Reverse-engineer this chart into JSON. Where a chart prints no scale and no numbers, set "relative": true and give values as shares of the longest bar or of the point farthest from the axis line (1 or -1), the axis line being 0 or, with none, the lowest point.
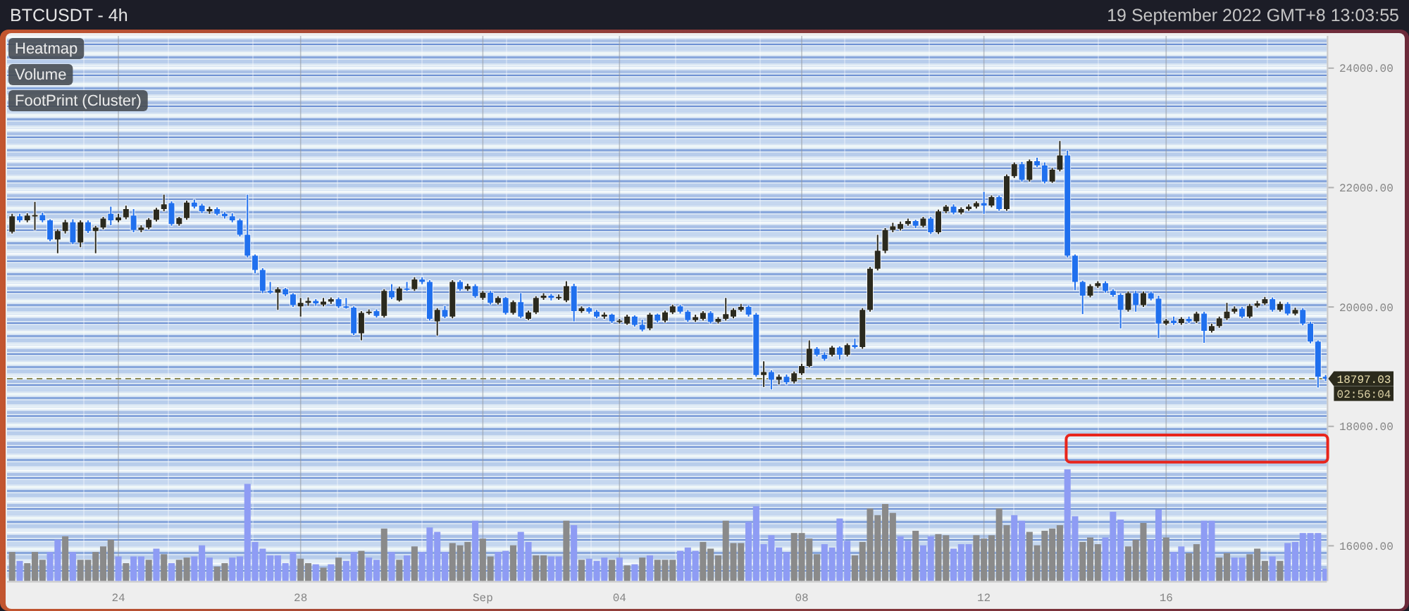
{
  "chart_data": [
    {
      "type": "candlestick",
      "title": "BTCUSDT - 4h",
      "subtitle": "19 September 2022 GMT+8 13:03:55",
      "x": [
        "2022-08-21T16:00",
        "2022-08-21T20:00",
        "2022-08-22T00:00",
        "2022-08-22T04:00",
        "2022-08-22T08:00",
        "2022-08-22T12:00",
        "2022-08-22T16:00",
        "2022-08-22T20:00",
        "2022-08-23T00:00",
        "2022-08-23T04:00",
        "2022-08-23T08:00",
        "2022-08-23T12:00",
        "2022-08-23T16:00",
        "2022-08-23T20:00",
        "2022-08-24T00:00",
        "2022-08-24T04:00",
        "2022-08-24T08:00",
        "2022-08-24T12:00",
        "2022-08-24T16:00",
        "2022-08-24T20:00",
        "2022-08-25T00:00",
        "2022-08-25T04:00",
        "2022-08-25T08:00",
        "2022-08-25T12:00",
        "2022-08-25T16:00",
        "2022-08-25T20:00",
        "2022-08-26T00:00",
        "2022-08-26T04:00",
        "2022-08-26T08:00",
        "2022-08-26T12:00",
        "2022-08-26T16:00",
        "2022-08-26T20:00",
        "2022-08-27T00:00",
        "2022-08-27T04:00",
        "2022-08-27T08:00",
        "2022-08-27T12:00",
        "2022-08-27T16:00",
        "2022-08-27T20:00",
        "2022-08-28T00:00",
        "2022-08-28T04:00",
        "2022-08-28T08:00",
        "2022-08-28T12:00",
        "2022-08-28T16:00",
        "2022-08-28T20:00",
        "2022-08-29T00:00",
        "2022-08-29T04:00",
        "2022-08-29T08:00",
        "2022-08-29T12:00",
        "2022-08-29T16:00",
        "2022-08-29T20:00",
        "2022-08-30T00:00",
        "2022-08-30T04:00",
        "2022-08-30T08:00",
        "2022-08-30T12:00",
        "2022-08-30T16:00",
        "2022-08-30T20:00",
        "2022-08-31T00:00",
        "2022-08-31T04:00",
        "2022-08-31T08:00",
        "2022-08-31T12:00",
        "2022-08-31T16:00",
        "2022-08-31T20:00",
        "2022-09-01T00:00",
        "2022-09-01T04:00",
        "2022-09-01T08:00",
        "2022-09-01T12:00",
        "2022-09-01T16:00",
        "2022-09-01T20:00",
        "2022-09-02T00:00",
        "2022-09-02T04:00",
        "2022-09-02T08:00",
        "2022-09-02T12:00",
        "2022-09-02T16:00",
        "2022-09-02T20:00",
        "2022-09-03T00:00",
        "2022-09-03T04:00",
        "2022-09-03T08:00",
        "2022-09-03T12:00",
        "2022-09-03T16:00",
        "2022-09-03T20:00",
        "2022-09-04T00:00",
        "2022-09-04T04:00",
        "2022-09-04T08:00",
        "2022-09-04T12:00",
        "2022-09-04T16:00",
        "2022-09-04T20:00",
        "2022-09-05T00:00",
        "2022-09-05T04:00",
        "2022-09-05T08:00",
        "2022-09-05T12:00",
        "2022-09-05T16:00",
        "2022-09-05T20:00",
        "2022-09-06T00:00",
        "2022-09-06T04:00",
        "2022-09-06T08:00",
        "2022-09-06T12:00",
        "2022-09-06T16:00",
        "2022-09-06T20:00",
        "2022-09-07T00:00",
        "2022-09-07T04:00",
        "2022-09-07T08:00",
        "2022-09-07T12:00",
        "2022-09-07T16:00",
        "2022-09-07T20:00",
        "2022-09-08T00:00",
        "2022-09-08T04:00",
        "2022-09-08T08:00",
        "2022-09-08T12:00",
        "2022-09-08T16:00",
        "2022-09-08T20:00",
        "2022-09-09T00:00",
        "2022-09-09T04:00",
        "2022-09-09T08:00",
        "2022-09-09T12:00",
        "2022-09-09T16:00",
        "2022-09-09T20:00",
        "2022-09-10T00:00",
        "2022-09-10T04:00",
        "2022-09-10T08:00",
        "2022-09-10T12:00",
        "2022-09-10T16:00",
        "2022-09-10T20:00",
        "2022-09-11T00:00",
        "2022-09-11T04:00",
        "2022-09-11T08:00",
        "2022-09-11T12:00",
        "2022-09-11T16:00",
        "2022-09-11T20:00",
        "2022-09-12T00:00",
        "2022-09-12T04:00",
        "2022-09-12T08:00",
        "2022-09-12T12:00",
        "2022-09-12T16:00",
        "2022-09-12T20:00",
        "2022-09-13T00:00",
        "2022-09-13T04:00",
        "2022-09-13T08:00",
        "2022-09-13T12:00",
        "2022-09-13T16:00",
        "2022-09-13T20:00",
        "2022-09-14T00:00",
        "2022-09-14T04:00",
        "2022-09-14T08:00",
        "2022-09-14T12:00",
        "2022-09-14T16:00",
        "2022-09-14T20:00",
        "2022-09-15T00:00",
        "2022-09-15T04:00",
        "2022-09-15T08:00",
        "2022-09-15T12:00",
        "2022-09-15T16:00",
        "2022-09-15T20:00",
        "2022-09-16T00:00",
        "2022-09-16T04:00",
        "2022-09-16T08:00",
        "2022-09-16T12:00",
        "2022-09-16T16:00",
        "2022-09-16T20:00",
        "2022-09-17T00:00",
        "2022-09-17T04:00",
        "2022-09-17T08:00",
        "2022-09-17T12:00",
        "2022-09-17T16:00",
        "2022-09-17T20:00",
        "2022-09-18T00:00",
        "2022-09-18T04:00",
        "2022-09-18T08:00",
        "2022-09-18T12:00",
        "2022-09-18T16:00",
        "2022-09-18T20:00",
        "2022-09-19T00:00",
        "2022-09-19T04:00",
        "2022-09-19T08:00",
        "2022-09-19T12:00"
      ],
      "ohlc": [
        [
          21260,
          21560,
          21230,
          21520
        ],
        [
          21520,
          21560,
          21420,
          21450
        ],
        [
          21450,
          21570,
          21420,
          21530
        ],
        [
          21530,
          21760,
          21290,
          21540
        ],
        [
          21540,
          21580,
          21420,
          21450
        ],
        [
          21450,
          21470,
          21100,
          21130
        ],
        [
          21130,
          21300,
          20900,
          21270
        ],
        [
          21270,
          21460,
          21230,
          21420
        ],
        [
          21420,
          21470,
          21050,
          21080
        ],
        [
          21080,
          21450,
          21000,
          21420
        ],
        [
          21420,
          21450,
          21240,
          21270
        ],
        [
          21270,
          21360,
          20900,
          21330
        ],
        [
          21330,
          21510,
          21300,
          21480
        ],
        [
          21560,
          21680,
          21370,
          21450
        ],
        [
          21450,
          21560,
          21420,
          21500
        ],
        [
          21500,
          21700,
          21470,
          21640
        ],
        [
          21530,
          21640,
          21250,
          21290
        ],
        [
          21290,
          21370,
          21250,
          21330
        ],
        [
          21330,
          21490,
          21300,
          21460
        ],
        [
          21460,
          21660,
          21430,
          21630
        ],
        [
          21640,
          21880,
          21600,
          21720
        ],
        [
          21740,
          21770,
          21360,
          21390
        ],
        [
          21390,
          21510,
          21360,
          21490
        ],
        [
          21490,
          21780,
          21460,
          21750
        ],
        [
          21750,
          21800,
          21650,
          21680
        ],
        [
          21700,
          21730,
          21570,
          21600
        ],
        [
          21600,
          21680,
          21560,
          21640
        ],
        [
          21640,
          21670,
          21530,
          21560
        ],
        [
          21560,
          21590,
          21480,
          21520
        ],
        [
          21520,
          21570,
          21420,
          21450
        ],
        [
          21450,
          21480,
          21180,
          21210
        ],
        [
          21210,
          21880,
          20830,
          20860
        ],
        [
          20860,
          20880,
          20560,
          20620
        ],
        [
          20620,
          20650,
          20230,
          20270
        ],
        [
          20270,
          20420,
          20220,
          20240
        ],
        [
          20240,
          20330,
          19950,
          20300
        ],
        [
          20300,
          20320,
          20180,
          20210
        ],
        [
          20210,
          20230,
          20000,
          20030
        ],
        [
          20010,
          20150,
          19840,
          20070
        ],
        [
          20070,
          20160,
          20020,
          20100
        ],
        [
          20100,
          20130,
          20020,
          20060
        ],
        [
          20040,
          20150,
          20010,
          20090
        ],
        [
          20090,
          20160,
          20050,
          20130
        ],
        [
          20130,
          20160,
          19980,
          20010
        ],
        [
          20010,
          20150,
          19970,
          19990
        ],
        [
          19990,
          20010,
          19530,
          19560
        ],
        [
          19560,
          19930,
          19440,
          19900
        ],
        [
          19900,
          19960,
          19870,
          19920
        ],
        [
          19930,
          19960,
          19820,
          19850
        ],
        [
          19850,
          20300,
          19820,
          20270
        ],
        [
          20270,
          20380,
          20130,
          20160
        ],
        [
          20110,
          20340,
          20090,
          20310
        ],
        [
          20310,
          20420,
          20270,
          20300
        ],
        [
          20300,
          20500,
          20270,
          20460
        ],
        [
          20460,
          20500,
          20380,
          20420
        ],
        [
          20420,
          20450,
          19770,
          19800
        ],
        [
          19760,
          19980,
          19520,
          19950
        ],
        [
          19950,
          20020,
          19810,
          19840
        ],
        [
          19840,
          20450,
          19810,
          20420
        ],
        [
          20420,
          20450,
          20270,
          20300
        ],
        [
          20300,
          20390,
          20270,
          20350
        ],
        [
          20350,
          20380,
          20150,
          20180
        ],
        [
          20150,
          20270,
          20120,
          20240
        ],
        [
          20240,
          20270,
          20040,
          20070
        ],
        [
          20070,
          20180,
          20040,
          20150
        ],
        [
          20150,
          20170,
          19870,
          19900
        ],
        [
          19900,
          20110,
          19870,
          20080
        ],
        [
          20080,
          20230,
          19810,
          19840
        ],
        [
          19800,
          19940,
          19780,
          19910
        ],
        [
          19910,
          20180,
          19880,
          20150
        ],
        [
          20150,
          20230,
          20120,
          20190
        ],
        [
          20190,
          20220,
          20110,
          20150
        ],
        [
          20150,
          20210,
          20120,
          20170
        ],
        [
          20110,
          20430,
          20080,
          20350
        ],
        [
          20350,
          20390,
          19760,
          19930
        ],
        [
          19930,
          20010,
          19900,
          19980
        ],
        [
          19980,
          20000,
          19890,
          19920
        ],
        [
          19920,
          19950,
          19810,
          19840
        ],
        [
          19840,
          19910,
          19800,
          19870
        ],
        [
          19870,
          19890,
          19730,
          19760
        ],
        [
          19760,
          19800,
          19720,
          19770
        ],
        [
          19720,
          19870,
          19700,
          19840
        ],
        [
          19840,
          19860,
          19670,
          19700
        ],
        [
          19700,
          19790,
          19590,
          19620
        ],
        [
          19640,
          19900,
          19610,
          19870
        ],
        [
          19870,
          19890,
          19740,
          19770
        ],
        [
          19770,
          19940,
          19740,
          19910
        ],
        [
          19910,
          20040,
          19880,
          20010
        ],
        [
          20010,
          20040,
          19890,
          19920
        ],
        [
          19920,
          19950,
          19750,
          19780
        ],
        [
          19780,
          19870,
          19750,
          19830
        ],
        [
          19800,
          19930,
          19770,
          19900
        ],
        [
          19900,
          19930,
          19720,
          19750
        ],
        [
          19750,
          19830,
          19720,
          19800
        ],
        [
          19800,
          20150,
          19770,
          19880
        ],
        [
          19840,
          19980,
          19810,
          19950
        ],
        [
          19950,
          20050,
          19920,
          20000
        ],
        [
          20000,
          20030,
          19840,
          19870
        ],
        [
          19870,
          19900,
          18830,
          18860
        ],
        [
          18860,
          19090,
          18660,
          18910
        ],
        [
          18910,
          18940,
          18620,
          18780
        ],
        [
          18780,
          18870,
          18700,
          18830
        ],
        [
          18830,
          18870,
          18700,
          18740
        ],
        [
          18750,
          18920,
          18720,
          18890
        ],
        [
          18890,
          19050,
          18860,
          19010
        ],
        [
          19010,
          19440,
          18990,
          19300
        ],
        [
          19300,
          19330,
          19170,
          19200
        ],
        [
          19200,
          19240,
          19100,
          19130
        ],
        [
          19200,
          19350,
          19170,
          19320
        ],
        [
          19320,
          19340,
          19120,
          19200
        ],
        [
          19200,
          19390,
          19170,
          19360
        ],
        [
          19360,
          19470,
          19300,
          19330
        ],
        [
          19330,
          19980,
          19300,
          19950
        ],
        [
          19950,
          20670,
          19920,
          20640
        ],
        [
          20640,
          21210,
          20610,
          20940
        ],
        [
          20940,
          21320,
          20900,
          21290
        ],
        [
          21290,
          21410,
          21250,
          21350
        ],
        [
          21310,
          21430,
          21280,
          21390
        ],
        [
          21390,
          21480,
          21360,
          21440
        ],
        [
          21440,
          21460,
          21320,
          21360
        ],
        [
          21360,
          21510,
          21330,
          21480
        ],
        [
          21480,
          21510,
          21220,
          21250
        ],
        [
          21250,
          21630,
          21220,
          21600
        ],
        [
          21600,
          21710,
          21570,
          21680
        ],
        [
          21680,
          21720,
          21550,
          21580
        ],
        [
          21580,
          21670,
          21550,
          21640
        ],
        [
          21640,
          21720,
          21610,
          21680
        ],
        [
          21680,
          21770,
          21650,
          21740
        ],
        [
          21740,
          21930,
          21560,
          21700
        ],
        [
          21700,
          21870,
          21670,
          21840
        ],
        [
          21840,
          21870,
          21610,
          21640
        ],
        [
          21640,
          22220,
          21610,
          22190
        ],
        [
          22190,
          22420,
          22160,
          22390
        ],
        [
          22390,
          22430,
          22100,
          22130
        ],
        [
          22130,
          22470,
          22100,
          22440
        ],
        [
          22440,
          22500,
          22340,
          22370
        ],
        [
          22370,
          22420,
          22070,
          22100
        ],
        [
          22100,
          22330,
          22080,
          22300
        ],
        [
          22300,
          22780,
          22270,
          22540
        ],
        [
          22540,
          22620,
          20830,
          20860
        ],
        [
          20860,
          20880,
          20280,
          20420
        ],
        [
          20420,
          20440,
          19880,
          20190
        ],
        [
          20190,
          20380,
          20160,
          20350
        ],
        [
          20350,
          20430,
          20320,
          20400
        ],
        [
          20400,
          20430,
          20240,
          20270
        ],
        [
          20270,
          20300,
          20170,
          20200
        ],
        [
          20200,
          20230,
          19640,
          19950
        ],
        [
          19950,
          20260,
          19920,
          20230
        ],
        [
          20230,
          20270,
          19920,
          20030
        ],
        [
          20030,
          20260,
          20000,
          20230
        ],
        [
          20230,
          20260,
          20110,
          20140
        ],
        [
          20140,
          20190,
          19480,
          19720
        ],
        [
          19720,
          19800,
          19690,
          19770
        ],
        [
          19770,
          19840,
          19700,
          19730
        ],
        [
          19730,
          19830,
          19700,
          19800
        ],
        [
          19800,
          19840,
          19730,
          19760
        ],
        [
          19760,
          19920,
          19730,
          19890
        ],
        [
          19890,
          19920,
          19400,
          19600
        ],
        [
          19600,
          19720,
          19570,
          19680
        ],
        [
          19680,
          19840,
          19650,
          19810
        ],
        [
          19810,
          20070,
          19780,
          19920
        ],
        [
          19920,
          20010,
          19890,
          19970
        ],
        [
          19970,
          20000,
          19810,
          19840
        ],
        [
          19840,
          20050,
          19810,
          20020
        ],
        [
          20020,
          20100,
          19990,
          20060
        ],
        [
          20060,
          20170,
          20030,
          20130
        ],
        [
          20130,
          20160,
          19920,
          19950
        ],
        [
          19950,
          20090,
          19920,
          20050
        ],
        [
          20050,
          20080,
          19860,
          19890
        ],
        [
          19890,
          19990,
          19860,
          19950
        ],
        [
          19950,
          19980,
          19690,
          19720
        ],
        [
          19720,
          19750,
          19390,
          19420
        ],
        [
          19420,
          19440,
          18650,
          18830
        ],
        [
          18830,
          18860,
          18760,
          18797.03
        ]
      ],
      "colors": [
        "#2b2a1e",
        "#2070ee",
        "#2b2a1e",
        "#2b2a1e",
        "#2070ee",
        "#2070ee",
        "#2b2a1e",
        "#2b2a1e",
        "#2070ee",
        "#2b2a1e",
        "#2070ee",
        "#2b2a1e",
        "#2b2a1e",
        "#2070ee",
        "#2b2a1e",
        "#2b2a1e",
        "#2070ee",
        "#2b2a1e",
        "#2b2a1e",
        "#2b2a1e",
        "#2b2a1e",
        "#2070ee",
        "#2b2a1e",
        "#2b2a1e",
        "#2070ee",
        "#2070ee",
        "#2b2a1e",
        "#2070ee",
        "#2070ee",
        "#2070ee",
        "#2070ee",
        "#2070ee",
        "#2070ee",
        "#2070ee",
        "#2070ee",
        "#2b2a1e",
        "#2070ee",
        "#2070ee",
        "#2b2a1e",
        "#2b2a1e",
        "#2070ee",
        "#2b2a1e",
        "#2b2a1e",
        "#2070ee",
        "#2070ee",
        "#2070ee",
        "#2b2a1e",
        "#2b2a1e",
        "#2070ee",
        "#2b2a1e",
        "#2070ee",
        "#2b2a1e",
        "#2070ee",
        "#2b2a1e",
        "#2070ee",
        "#2070ee",
        "#2b2a1e",
        "#2070ee",
        "#2b2a1e",
        "#2070ee",
        "#2b2a1e",
        "#2070ee",
        "#2b2a1e",
        "#2070ee",
        "#2b2a1e",
        "#2070ee",
        "#2b2a1e",
        "#2070ee",
        "#2b2a1e",
        "#2b2a1e",
        "#2b2a1e",
        "#2070ee",
        "#2b2a1e",
        "#2b2a1e",
        "#2070ee",
        "#2b2a1e",
        "#2070ee",
        "#2070ee",
        "#2b2a1e",
        "#2070ee",
        "#2b2a1e",
        "#2b2a1e",
        "#2070ee",
        "#2070ee",
        "#2b2a1e",
        "#2070ee",
        "#2b2a1e",
        "#2b2a1e",
        "#2070ee",
        "#2070ee",
        "#2b2a1e",
        "#2b2a1e",
        "#2070ee",
        "#2b2a1e",
        "#2b2a1e",
        "#2b2a1e",
        "#2b2a1e",
        "#2070ee",
        "#2070ee",
        "#2b2a1e",
        "#2070ee",
        "#2b2a1e",
        "#2070ee",
        "#2b2a1e",
        "#2b2a1e",
        "#2b2a1e",
        "#2070ee",
        "#2070ee",
        "#2b2a1e",
        "#2070ee",
        "#2b2a1e",
        "#2070ee",
        "#2b2a1e",
        "#2b2a1e",
        "#2b2a1e",
        "#2b2a1e",
        "#2b2a1e",
        "#2b2a1e",
        "#2b2a1e",
        "#2070ee",
        "#2b2a1e",
        "#2070ee",
        "#2b2a1e",
        "#2b2a1e",
        "#2070ee",
        "#2b2a1e",
        "#2b2a1e",
        "#2b2a1e",
        "#2070ee",
        "#2b2a1e",
        "#2070ee",
        "#2b2a1e",
        "#2b2a1e",
        "#2070ee",
        "#2b2a1e",
        "#2070ee",
        "#2070ee",
        "#2b2a1e",
        "#2b2a1e",
        "#2070ee",
        "#2070ee",
        "#2070ee",
        "#2b2a1e",
        "#2b2a1e",
        "#2070ee",
        "#2070ee",
        "#2070ee",
        "#2b2a1e",
        "#2070ee",
        "#2b2a1e",
        "#2070ee",
        "#2070ee",
        "#2b2a1e",
        "#2070ee",
        "#2b2a1e",
        "#2070ee",
        "#2b2a1e",
        "#2070ee",
        "#2b2a1e",
        "#2b2a1e",
        "#2b2a1e",
        "#2b2a1e",
        "#2070ee",
        "#2b2a1e",
        "#2b2a1e",
        "#2b2a1e",
        "#2070ee",
        "#2b2a1e",
        "#2070ee",
        "#2b2a1e",
        "#2070ee",
        "#2070ee",
        "#2070ee",
        "#2070ee"
      ],
      "xlim": [
        "2022-08-21T13:20",
        "2022-09-19T12:40"
      ],
      "xticks": [
        {
          "value": "2022-08-24",
          "label": "24"
        },
        {
          "value": "2022-08-28",
          "label": "28"
        },
        {
          "value": "2022-09-01",
          "label": "Sep"
        },
        {
          "value": "2022-09-04",
          "label": "04"
        },
        {
          "value": "2022-09-08",
          "label": "08"
        },
        {
          "value": "2022-09-12",
          "label": "12"
        },
        {
          "value": "2022-09-16",
          "label": "16"
        }
      ],
      "ylim": [
        15410,
        24540
      ],
      "yticks": [
        {
          "value": 16000,
          "label": "16000.00"
        },
        {
          "value": 18000,
          "label": "18000.00"
        },
        {
          "value": 20000,
          "label": "20000.00"
        },
        {
          "value": 22000,
          "label": "22000.00"
        },
        {
          "value": 24000,
          "label": "24000.00"
        }
      ],
      "grid": "x",
      "ref_lines": [
        {
          "axis": "y",
          "value": 18797.03,
          "label": "18797.03",
          "color": "#8c8a55",
          "line_style": "dashed"
        }
      ],
      "annotations": [
        "Heatmap",
        "Volume",
        "FootPrint (Cluster)",
        "02:56:04"
      ]
    },
    {
      "type": "bar",
      "relative": true,
      "x": [
        "2022-08-21T16:00",
        "2022-08-21T20:00",
        "2022-08-22T00:00",
        "2022-08-22T04:00",
        "2022-08-22T08:00",
        "2022-08-22T12:00",
        "2022-08-22T16:00",
        "2022-08-22T20:00",
        "2022-08-23T00:00",
        "2022-08-23T04:00",
        "2022-08-23T08:00",
        "2022-08-23T12:00",
        "2022-08-23T16:00",
        "2022-08-23T20:00",
        "2022-08-24T00:00",
        "2022-08-24T04:00",
        "2022-08-24T08:00",
        "2022-08-24T12:00",
        "2022-08-24T16:00",
        "2022-08-24T20:00",
        "2022-08-25T00:00",
        "2022-08-25T04:00",
        "2022-08-25T08:00",
        "2022-08-25T12:00",
        "2022-08-25T16:00",
        "2022-08-25T20:00",
        "2022-08-26T00:00",
        "2022-08-26T04:00",
        "2022-08-26T08:00",
        "2022-08-26T12:00",
        "2022-08-26T16:00",
        "2022-08-26T20:00",
        "2022-08-27T00:00",
        "2022-08-27T04:00",
        "2022-08-27T08:00",
        "2022-08-27T12:00",
        "2022-08-27T16:00",
        "2022-08-27T20:00",
        "2022-08-28T00:00",
        "2022-08-28T04:00",
        "2022-08-28T08:00",
        "2022-08-28T12:00",
        "2022-08-28T16:00",
        "2022-08-28T20:00",
        "2022-08-29T00:00",
        "2022-08-29T04:00",
        "2022-08-29T08:00",
        "2022-08-29T12:00",
        "2022-08-29T16:00",
        "2022-08-29T20:00",
        "2022-08-30T00:00",
        "2022-08-30T04:00",
        "2022-08-30T08:00",
        "2022-08-30T12:00",
        "2022-08-30T16:00",
        "2022-08-30T20:00",
        "2022-08-31T00:00",
        "2022-08-31T04:00",
        "2022-08-31T08:00",
        "2022-08-31T12:00",
        "2022-08-31T16:00",
        "2022-08-31T20:00",
        "2022-09-01T00:00",
        "2022-09-01T04:00",
        "2022-09-01T08:00",
        "2022-09-01T12:00",
        "2022-09-01T16:00",
        "2022-09-01T20:00",
        "2022-09-02T00:00",
        "2022-09-02T04:00",
        "2022-09-02T08:00",
        "2022-09-02T12:00",
        "2022-09-02T16:00",
        "2022-09-02T20:00",
        "2022-09-03T00:00",
        "2022-09-03T04:00",
        "2022-09-03T08:00",
        "2022-09-03T12:00",
        "2022-09-03T16:00",
        "2022-09-03T20:00",
        "2022-09-04T00:00",
        "2022-09-04T04:00",
        "2022-09-04T08:00",
        "2022-09-04T12:00",
        "2022-09-04T16:00",
        "2022-09-04T20:00",
        "2022-09-05T00:00",
        "2022-09-05T04:00",
        "2022-09-05T08:00",
        "2022-09-05T12:00",
        "2022-09-05T16:00",
        "2022-09-05T20:00",
        "2022-09-06T00:00",
        "2022-09-06T04:00",
        "2022-09-06T08:00",
        "2022-09-06T12:00",
        "2022-09-06T16:00",
        "2022-09-06T20:00",
        "2022-09-07T00:00",
        "2022-09-07T04:00",
        "2022-09-07T08:00",
        "2022-09-07T12:00",
        "2022-09-07T16:00",
        "2022-09-07T20:00",
        "2022-09-08T00:00",
        "2022-09-08T04:00",
        "2022-09-08T08:00",
        "2022-09-08T12:00",
        "2022-09-08T16:00",
        "2022-09-08T20:00",
        "2022-09-09T00:00",
        "2022-09-09T04:00",
        "2022-09-09T08:00",
        "2022-09-09T12:00",
        "2022-09-09T16:00",
        "2022-09-09T20:00",
        "2022-09-10T00:00",
        "2022-09-10T04:00",
        "2022-09-10T08:00",
        "2022-09-10T12:00",
        "2022-09-10T16:00",
        "2022-09-10T20:00",
        "2022-09-11T00:00",
        "2022-09-11T04:00",
        "2022-09-11T08:00",
        "2022-09-11T12:00",
        "2022-09-11T16:00",
        "2022-09-11T20:00",
        "2022-09-12T00:00",
        "2022-09-12T04:00",
        "2022-09-12T08:00",
        "2022-09-12T12:00",
        "2022-09-12T16:00",
        "2022-09-12T20:00",
        "2022-09-13T00:00",
        "2022-09-13T04:00",
        "2022-09-13T08:00",
        "2022-09-13T12:00",
        "2022-09-13T16:00",
        "2022-09-13T20:00",
        "2022-09-14T00:00",
        "2022-09-14T04:00",
        "2022-09-14T08:00",
        "2022-09-14T12:00",
        "2022-09-14T16:00",
        "2022-09-14T20:00",
        "2022-09-15T00:00",
        "2022-09-15T04:00",
        "2022-09-15T08:00",
        "2022-09-15T12:00",
        "2022-09-15T16:00",
        "2022-09-15T20:00",
        "2022-09-16T00:00",
        "2022-09-16T04:00",
        "2022-09-16T08:00",
        "2022-09-16T12:00",
        "2022-09-16T16:00",
        "2022-09-16T20:00",
        "2022-09-17T00:00",
        "2022-09-17T04:00",
        "2022-09-17T08:00",
        "2022-09-17T12:00",
        "2022-09-17T16:00",
        "2022-09-17T20:00",
        "2022-09-18T00:00",
        "2022-09-18T04:00",
        "2022-09-18T08:00",
        "2022-09-18T12:00",
        "2022-09-18T16:00",
        "2022-09-18T20:00",
        "2022-09-19T00:00",
        "2022-09-19T04:00",
        "2022-09-19T08:00",
        "2022-09-19T12:00"
      ],
      "values": [
        0.26,
        0.18,
        0.16,
        0.26,
        0.19,
        0.26,
        0.37,
        0.4,
        0.26,
        0.19,
        0.19,
        0.26,
        0.31,
        0.37,
        0.22,
        0.16,
        0.22,
        0.22,
        0.19,
        0.29,
        0.24,
        0.16,
        0.19,
        0.21,
        0.22,
        0.32,
        0.21,
        0.13,
        0.16,
        0.21,
        0.22,
        0.87,
        0.35,
        0.29,
        0.23,
        0.23,
        0.16,
        0.26,
        0.2,
        0.16,
        0.15,
        0.12,
        0.15,
        0.21,
        0.18,
        0.26,
        0.27,
        0.21,
        0.19,
        0.47,
        0.26,
        0.19,
        0.23,
        0.31,
        0.26,
        0.48,
        0.44,
        0.26,
        0.34,
        0.32,
        0.35,
        0.54,
        0.38,
        0.22,
        0.26,
        0.27,
        0.32,
        0.44,
        0.35,
        0.23,
        0.23,
        0.22,
        0.22,
        0.54,
        0.5,
        0.19,
        0.2,
        0.18,
        0.21,
        0.19,
        0.21,
        0.14,
        0.15,
        0.21,
        0.23,
        0.19,
        0.19,
        0.19,
        0.27,
        0.3,
        0.27,
        0.35,
        0.29,
        0.23,
        0.54,
        0.34,
        0.34,
        0.53,
        0.67,
        0.33,
        0.41,
        0.3,
        0.26,
        0.43,
        0.43,
        0.38,
        0.24,
        0.33,
        0.3,
        0.56,
        0.36,
        0.23,
        0.35,
        0.65,
        0.59,
        0.69,
        0.61,
        0.4,
        0.36,
        0.45,
        0.32,
        0.4,
        0.42,
        0.41,
        0.29,
        0.33,
        0.33,
        0.41,
        0.38,
        0.41,
        0.65,
        0.5,
        0.59,
        0.54,
        0.44,
        0.32,
        0.45,
        0.47,
        0.5,
        1,
        0.58,
        0.35,
        0.39,
        0.33,
        0.39,
        0.62,
        0.55,
        0.31,
        0.37,
        0.52,
        0.37,
        0.64,
        0.39,
        0.26,
        0.31,
        0.25,
        0.33,
        0.54,
        0.54,
        0.21,
        0.25,
        0.21,
        0.21,
        0.24,
        0.29,
        0.18,
        0.22,
        0.18,
        0.34,
        0.35,
        0.43,
        0.43,
        0.43,
        0.11
      ],
      "colors": [
        "#8a8a8a",
        "#8e9cf4",
        "#8a8a8a",
        "#8a8a8a",
        "#8a8a8a",
        "#8e9cf4",
        "#8e9cf4",
        "#8a8a8a",
        "#8e9cf4",
        "#8a8a8a",
        "#8a8a8a",
        "#8a8a8a",
        "#8a8a8a",
        "#8a8a8a",
        "#8e9cf4",
        "#8a8a8a",
        "#8e9cf4",
        "#8e9cf4",
        "#8a8a8a",
        "#8e9cf4",
        "#8a8a8a",
        "#8e9cf4",
        "#8a8a8a",
        "#8a8a8a",
        "#8e9cf4",
        "#8e9cf4",
        "#8e9cf4",
        "#8a8a8a",
        "#8a8a8a",
        "#8e9cf4",
        "#8e9cf4",
        "#8e9cf4",
        "#8e9cf4",
        "#8e9cf4",
        "#8e9cf4",
        "#8e9cf4",
        "#8e9cf4",
        "#8e9cf4",
        "#8a8a8a",
        "#8a8a8a",
        "#8e9cf4",
        "#8a8a8a",
        "#8e9cf4",
        "#8a8a8a",
        "#8e9cf4",
        "#8e9cf4",
        "#8a8a8a",
        "#8e9cf4",
        "#8e9cf4",
        "#8a8a8a",
        "#8e9cf4",
        "#8a8a8a",
        "#8e9cf4",
        "#8a8a8a",
        "#8e9cf4",
        "#8e9cf4",
        "#8e9cf4",
        "#8e9cf4",
        "#8a8a8a",
        "#8a8a8a",
        "#8a8a8a",
        "#8e9cf4",
        "#8a8a8a",
        "#8a8a8a",
        "#8e9cf4",
        "#8e9cf4",
        "#8a8a8a",
        "#8e9cf4",
        "#8e9cf4",
        "#8a8a8a",
        "#8a8a8a",
        "#8e9cf4",
        "#8e9cf4",
        "#8a8a8a",
        "#8e9cf4",
        "#8a8a8a",
        "#8e9cf4",
        "#8e9cf4",
        "#8e9cf4",
        "#8a8a8a",
        "#8e9cf4",
        "#8a8a8a",
        "#8e9cf4",
        "#8a8a8a",
        "#8e9cf4",
        "#8a8a8a",
        "#8a8a8a",
        "#8a8a8a",
        "#8e9cf4",
        "#8e9cf4",
        "#8e9cf4",
        "#8a8a8a",
        "#8a8a8a",
        "#8a8a8a",
        "#8a8a8a",
        "#8a8a8a",
        "#8a8a8a",
        "#8e9cf4",
        "#8e9cf4",
        "#8e9cf4",
        "#8e9cf4",
        "#8e9cf4",
        "#8e9cf4",
        "#8a8a8a",
        "#8a8a8a",
        "#8a8a8a",
        "#8a8a8a",
        "#8e9cf4",
        "#8e9cf4",
        "#8e9cf4",
        "#8e9cf4",
        "#8a8a8a",
        "#8a8a8a",
        "#8a8a8a",
        "#8a8a8a",
        "#8a8a8a",
        "#8a8a8a",
        "#8e9cf4",
        "#8e9cf4",
        "#8a8a8a",
        "#8e9cf4",
        "#8e9cf4",
        "#8a8a8a",
        "#8a8a8a",
        "#8e9cf4",
        "#8e9cf4",
        "#8e9cf4",
        "#8a8a8a",
        "#8a8a8a",
        "#8a8a8a",
        "#8a8a8a",
        "#8a8a8a",
        "#8e9cf4",
        "#8e9cf4",
        "#8a8a8a",
        "#8a8a8a",
        "#8a8a8a",
        "#8a8a8a",
        "#8a8a8a",
        "#8e9cf4",
        "#8e9cf4",
        "#8a8a8a",
        "#8a8a8a",
        "#8a8a8a",
        "#8e9cf4",
        "#8e9cf4",
        "#8e9cf4",
        "#8a8a8a",
        "#8a8a8a",
        "#8a8a8a",
        "#8e9cf4",
        "#8e9cf4",
        "#8a8a8a",
        "#8e9cf4",
        "#8e9cf4",
        "#8a8a8a",
        "#8a8a8a",
        "#8e9cf4",
        "#8e9cf4",
        "#8a8a8a",
        "#8a8a8a",
        "#8e9cf4",
        "#8e9cf4",
        "#8a8a8a",
        "#8a8a8a",
        "#8a8a8a",
        "#8e9cf4",
        "#8a8a8a",
        "#8e9cf4",
        "#8e9cf4",
        "#8e9cf4",
        "#8e9cf4",
        "#8e9cf4",
        "#8e9cf4"
      ],
      "xlim": [
        "2022-08-21T13:20",
        "2022-09-19T12:40"
      ]
    }
  ]
}
